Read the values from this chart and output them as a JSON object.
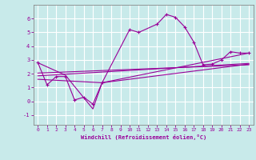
{
  "xlabel": "Windchill (Refroidissement éolien,°C)",
  "background_color": "#c8eaea",
  "grid_color": "#ffffff",
  "line_color": "#990099",
  "xlim": [
    -0.5,
    23.5
  ],
  "ylim": [
    -1.7,
    7.0
  ],
  "yticks": [
    -1,
    0,
    1,
    2,
    3,
    4,
    5,
    6
  ],
  "xticks": [
    0,
    1,
    2,
    3,
    4,
    5,
    6,
    7,
    8,
    9,
    10,
    11,
    12,
    13,
    14,
    15,
    16,
    17,
    18,
    19,
    20,
    21,
    22,
    23
  ],
  "series1_x": [
    0,
    1,
    2,
    3,
    4,
    5,
    6,
    7,
    10,
    11,
    13,
    14,
    15,
    16,
    17,
    18,
    19,
    20,
    21,
    22,
    23
  ],
  "series1_y": [
    2.8,
    1.2,
    1.8,
    1.8,
    0.1,
    0.3,
    -0.2,
    1.35,
    5.2,
    5.0,
    5.6,
    6.3,
    6.1,
    5.4,
    4.3,
    2.65,
    2.7,
    3.0,
    3.6,
    3.5,
    3.5
  ],
  "series2_x": [
    0,
    3,
    6,
    7,
    23
  ],
  "series2_y": [
    2.8,
    1.9,
    -0.55,
    1.35,
    3.5
  ],
  "series3_x": [
    0,
    23
  ],
  "series3_y": [
    2.05,
    2.65
  ],
  "series4_x": [
    0,
    23
  ],
  "series4_y": [
    1.85,
    2.75
  ],
  "series5_x": [
    0,
    7,
    23
  ],
  "series5_y": [
    1.6,
    1.35,
    2.7
  ]
}
